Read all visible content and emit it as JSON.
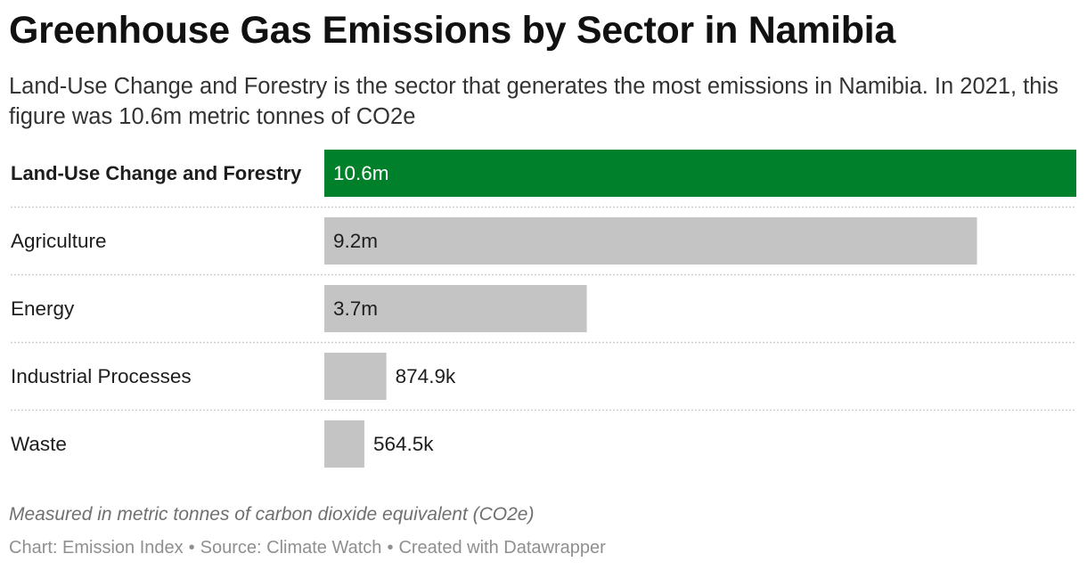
{
  "header": {
    "title": "Greenhouse Gas Emissions by Sector in Namibia",
    "subtitle": "Land-Use Change and Forestry is the sector that generates the most emissions in Namibia. In 2021, this figure was 10.6m metric tonnes of CO2e"
  },
  "chart_data": {
    "type": "bar",
    "orientation": "horizontal",
    "categories": [
      "Land-Use Change and Forestry",
      "Agriculture",
      "Energy",
      "Industrial Processes",
      "Waste"
    ],
    "values": [
      10600000,
      9200000,
      3700000,
      874900,
      564500
    ],
    "value_labels": [
      "10.6m",
      "9.2m",
      "3.7m",
      "874.9k",
      "564.5k"
    ],
    "highlight_index": 0,
    "colors": {
      "highlight": "#00802b",
      "default": "#c4c4c4"
    },
    "xlim": [
      0,
      10600000
    ],
    "grid": false
  },
  "notes": "Measured in metric tonnes of carbon dioxide equivalent (CO2e)",
  "footer": {
    "chart_credit": "Chart: Emission Index",
    "source": "Source: Climate Watch",
    "created_with": "Created with Datawrapper",
    "separator": "•"
  }
}
